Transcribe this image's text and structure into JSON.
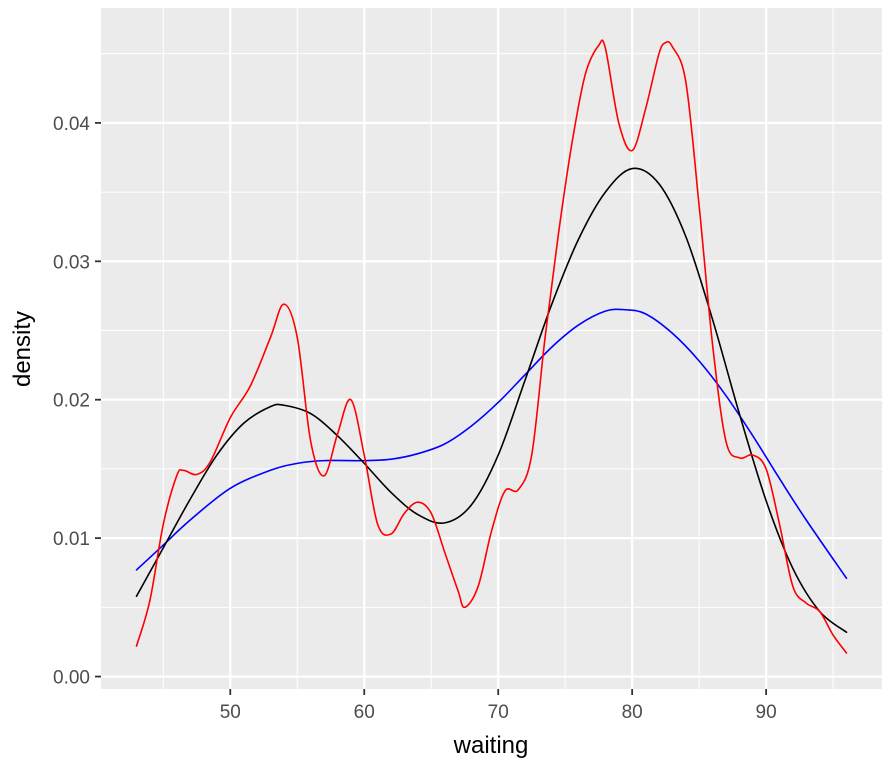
{
  "chart_data": {
    "type": "line",
    "title": "",
    "xlabel": "waiting",
    "ylabel": "density",
    "xlim": [
      40.35,
      98.65
    ],
    "ylim": [
      -0.0009,
      0.0483
    ],
    "x_ticks": [
      50,
      60,
      70,
      80,
      90
    ],
    "x_tick_labels": [
      "50",
      "60",
      "70",
      "80",
      "90"
    ],
    "y_ticks": [
      0.0,
      0.01,
      0.02,
      0.03,
      0.04
    ],
    "y_tick_labels": [
      "0.00",
      "0.01",
      "0.02",
      "0.03",
      "0.04"
    ],
    "grid": true,
    "legend": "none",
    "series": [
      {
        "color": "#0000ff",
        "x": [
          43,
          45,
          47,
          50,
          53,
          55,
          57,
          60,
          62,
          64,
          66,
          68,
          70,
          72,
          74,
          76,
          78,
          79.5,
          81,
          83,
          85,
          87,
          89,
          91,
          93,
          96
        ],
        "y": [
          0.0077,
          0.0095,
          0.0113,
          0.0136,
          0.0149,
          0.0154,
          0.0156,
          0.0156,
          0.0157,
          0.0161,
          0.0168,
          0.0181,
          0.0198,
          0.0218,
          0.0238,
          0.0254,
          0.0264,
          0.0265,
          0.0262,
          0.0248,
          0.0228,
          0.0203,
          0.0174,
          0.0143,
          0.0113,
          0.0071
        ]
      },
      {
        "color": "#000000",
        "x": [
          43,
          45,
          47,
          49,
          51,
          53,
          54,
          56,
          58,
          60,
          62,
          64,
          66,
          68,
          70,
          72,
          74,
          76,
          78,
          80,
          82,
          84,
          86,
          88,
          90,
          92,
          94,
          96
        ],
        "y": [
          0.0058,
          0.0093,
          0.0128,
          0.016,
          0.0183,
          0.0195,
          0.0196,
          0.019,
          0.0174,
          0.0154,
          0.0133,
          0.0117,
          0.0111,
          0.0124,
          0.016,
          0.0214,
          0.0269,
          0.0316,
          0.035,
          0.0367,
          0.0356,
          0.0318,
          0.0258,
          0.019,
          0.0127,
          0.0078,
          0.0047,
          0.0032
        ]
      },
      {
        "color": "#ff0000",
        "x": [
          43,
          44,
          45,
          46,
          46.5,
          47.5,
          48.5,
          50,
          51.5,
          53,
          54,
          55,
          56,
          57,
          58,
          59,
          60,
          61,
          62,
          63,
          64,
          65,
          66,
          67,
          67.5,
          68.5,
          69.5,
          70.5,
          71.5,
          72.5,
          73.5,
          74.5,
          75.5,
          76.5,
          77.5,
          78,
          79,
          80,
          81,
          82,
          82.5,
          83,
          84,
          85,
          86,
          87,
          88,
          89,
          90,
          91,
          92,
          93,
          94,
          95,
          96
        ],
        "y": [
          0.0022,
          0.0055,
          0.011,
          0.0145,
          0.0149,
          0.0146,
          0.0155,
          0.0187,
          0.021,
          0.0245,
          0.0269,
          0.0245,
          0.017,
          0.0145,
          0.0175,
          0.02,
          0.016,
          0.011,
          0.0103,
          0.0118,
          0.0126,
          0.0118,
          0.009,
          0.0062,
          0.005,
          0.0065,
          0.0105,
          0.0134,
          0.0135,
          0.016,
          0.0245,
          0.032,
          0.0385,
          0.0435,
          0.0456,
          0.0454,
          0.04,
          0.038,
          0.041,
          0.045,
          0.0458,
          0.0455,
          0.043,
          0.034,
          0.024,
          0.017,
          0.0158,
          0.016,
          0.015,
          0.011,
          0.0065,
          0.0053,
          0.0047,
          0.003,
          0.0017
        ]
      }
    ]
  }
}
